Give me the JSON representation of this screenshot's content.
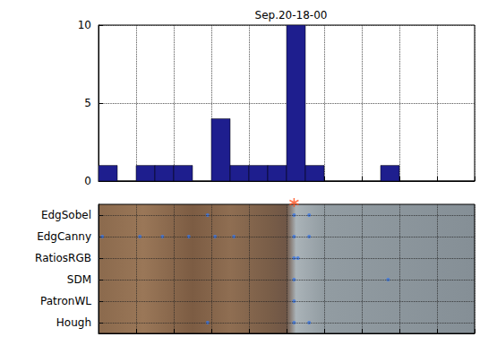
{
  "chart_data": [
    {
      "type": "histogram",
      "title": "Sep.20-18-00",
      "bins": [
        0,
        5,
        10,
        15,
        20,
        25,
        30,
        35,
        40,
        45,
        50,
        55,
        60,
        65,
        70,
        75,
        80,
        85,
        90,
        95,
        100
      ],
      "values": [
        1,
        0,
        1,
        1,
        1,
        0,
        4,
        1,
        1,
        1,
        10,
        1,
        0,
        0,
        0,
        1,
        0,
        0,
        0,
        0
      ],
      "color": "#1e1e8e",
      "xlim": [
        0,
        100
      ],
      "xticks": [
        0,
        10,
        20,
        30,
        40,
        50,
        60,
        70,
        80,
        90,
        100
      ],
      "ylim": [
        0,
        10
      ],
      "yticks": [
        0,
        5,
        10
      ],
      "grid": true,
      "tick_labels": "y"
    },
    {
      "type": "scatter",
      "categories": [
        "EdgSobel",
        "EdgCanny",
        "RatiosRGB",
        "SDM",
        "PatronWL",
        "Hough"
      ],
      "xlim": [
        0,
        100
      ],
      "xticks": [
        0,
        10,
        20,
        30,
        40,
        50,
        60,
        70,
        80,
        90,
        100
      ],
      "grid": true,
      "tick_labels": "y",
      "series": [
        {
          "color": "#3b78e7",
          "marker": "circle",
          "x": [
            29,
            52,
            56,
            1,
            11,
            17,
            24,
            31,
            36,
            52,
            56,
            52,
            53,
            52,
            77,
            52,
            29,
            52,
            56
          ],
          "y": [
            "EdgSobel",
            "EdgSobel",
            "EdgSobel",
            "EdgCanny",
            "EdgCanny",
            "EdgCanny",
            "EdgCanny",
            "EdgCanny",
            "EdgCanny",
            "EdgCanny",
            "EdgCanny",
            "RatiosRGB",
            "RatiosRGB",
            "SDM",
            "SDM",
            "PatronWL",
            "Hough",
            "Hough",
            "Hough"
          ]
        },
        {
          "color": "#ff4d1a",
          "marker": "asterisk",
          "x": [
            52
          ]
        }
      ]
    }
  ]
}
